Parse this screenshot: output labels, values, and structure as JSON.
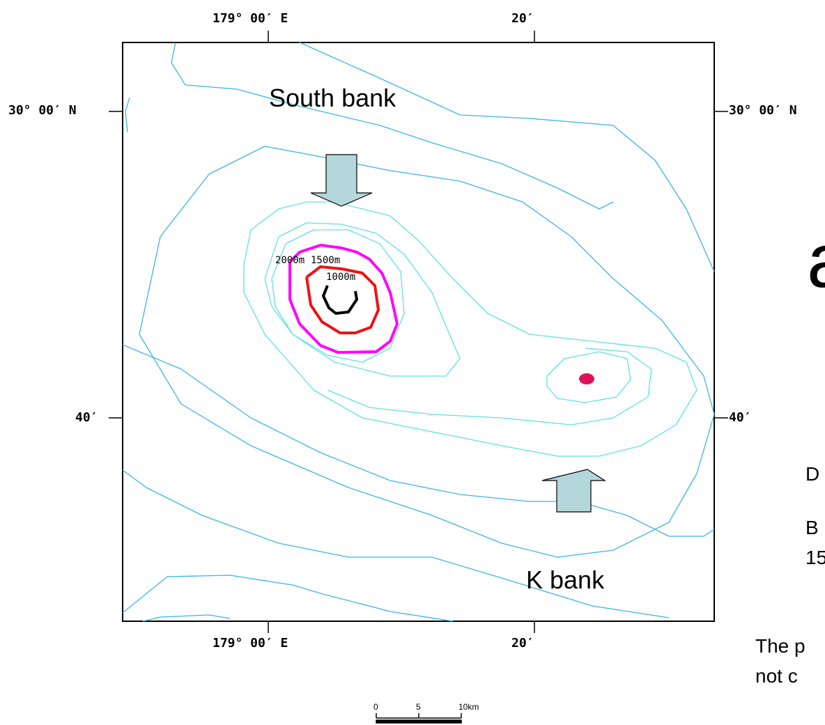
{
  "axes": {
    "top_lon_1": "179° 00′ E",
    "top_lon_2": "20′",
    "bottom_lon_1": "179° 00′ E",
    "bottom_lon_2": "20′",
    "left_lat_1": "30° 00′ N",
    "left_lat_2": "40′",
    "right_lat_1": "30° 00′ N",
    "right_lat_2": "40′"
  },
  "labels": {
    "south_bank": "South bank",
    "k_bank": "K bank"
  },
  "contour_labels": {
    "c2000": "2000m",
    "c1500": "1500m",
    "c1000": "1000m"
  },
  "side_text": {
    "big": "a",
    "line_d": "D",
    "line_b": "B",
    "line_15": "15",
    "line_the": "The p",
    "line_not": "not c"
  },
  "scale_bar": {
    "t0": "0",
    "t5": "5",
    "t10": "10km"
  },
  "colors": {
    "contour_outer": "#3cb4e6",
    "contour_inner": "#5ee0e6",
    "contour_2000": "#ff00ff",
    "contour_1500": "#ee1111",
    "contour_1000": "#000000",
    "arrow_fill": "#b4d7dc",
    "summit_dot": "#e0105a"
  }
}
